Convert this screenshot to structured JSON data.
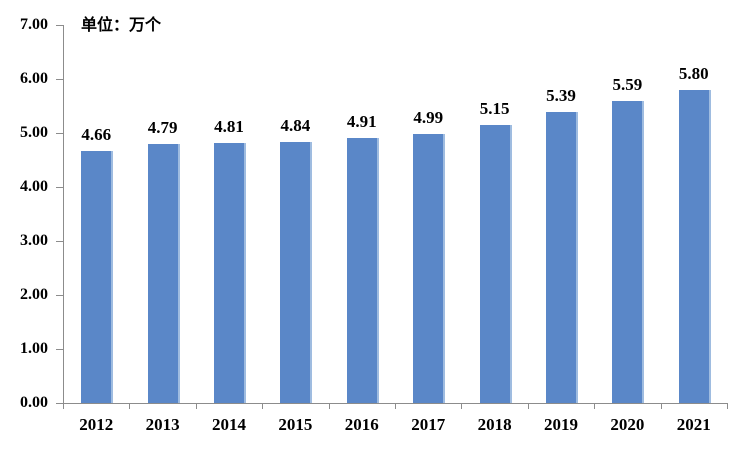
{
  "chart_data": {
    "type": "bar",
    "unit_label": "单位：万个",
    "categories": [
      "2012",
      "2013",
      "2014",
      "2015",
      "2016",
      "2017",
      "2018",
      "2019",
      "2020",
      "2021"
    ],
    "values": [
      4.66,
      4.79,
      4.81,
      4.84,
      4.91,
      4.99,
      5.15,
      5.39,
      5.59,
      5.8
    ],
    "value_label_decimals": 2,
    "ylim": [
      0,
      7
    ],
    "ytick_labels": [
      "0.00",
      "1.00",
      "2.00",
      "3.00",
      "4.00",
      "5.00",
      "6.00",
      "7.00"
    ],
    "grid": false,
    "legend": false,
    "colors": {
      "bar": "#5A87C8",
      "bar_edge": "#9FBCE0",
      "axis": "#8C8C8C",
      "text": "#000000",
      "background": "#FFFFFF"
    }
  }
}
